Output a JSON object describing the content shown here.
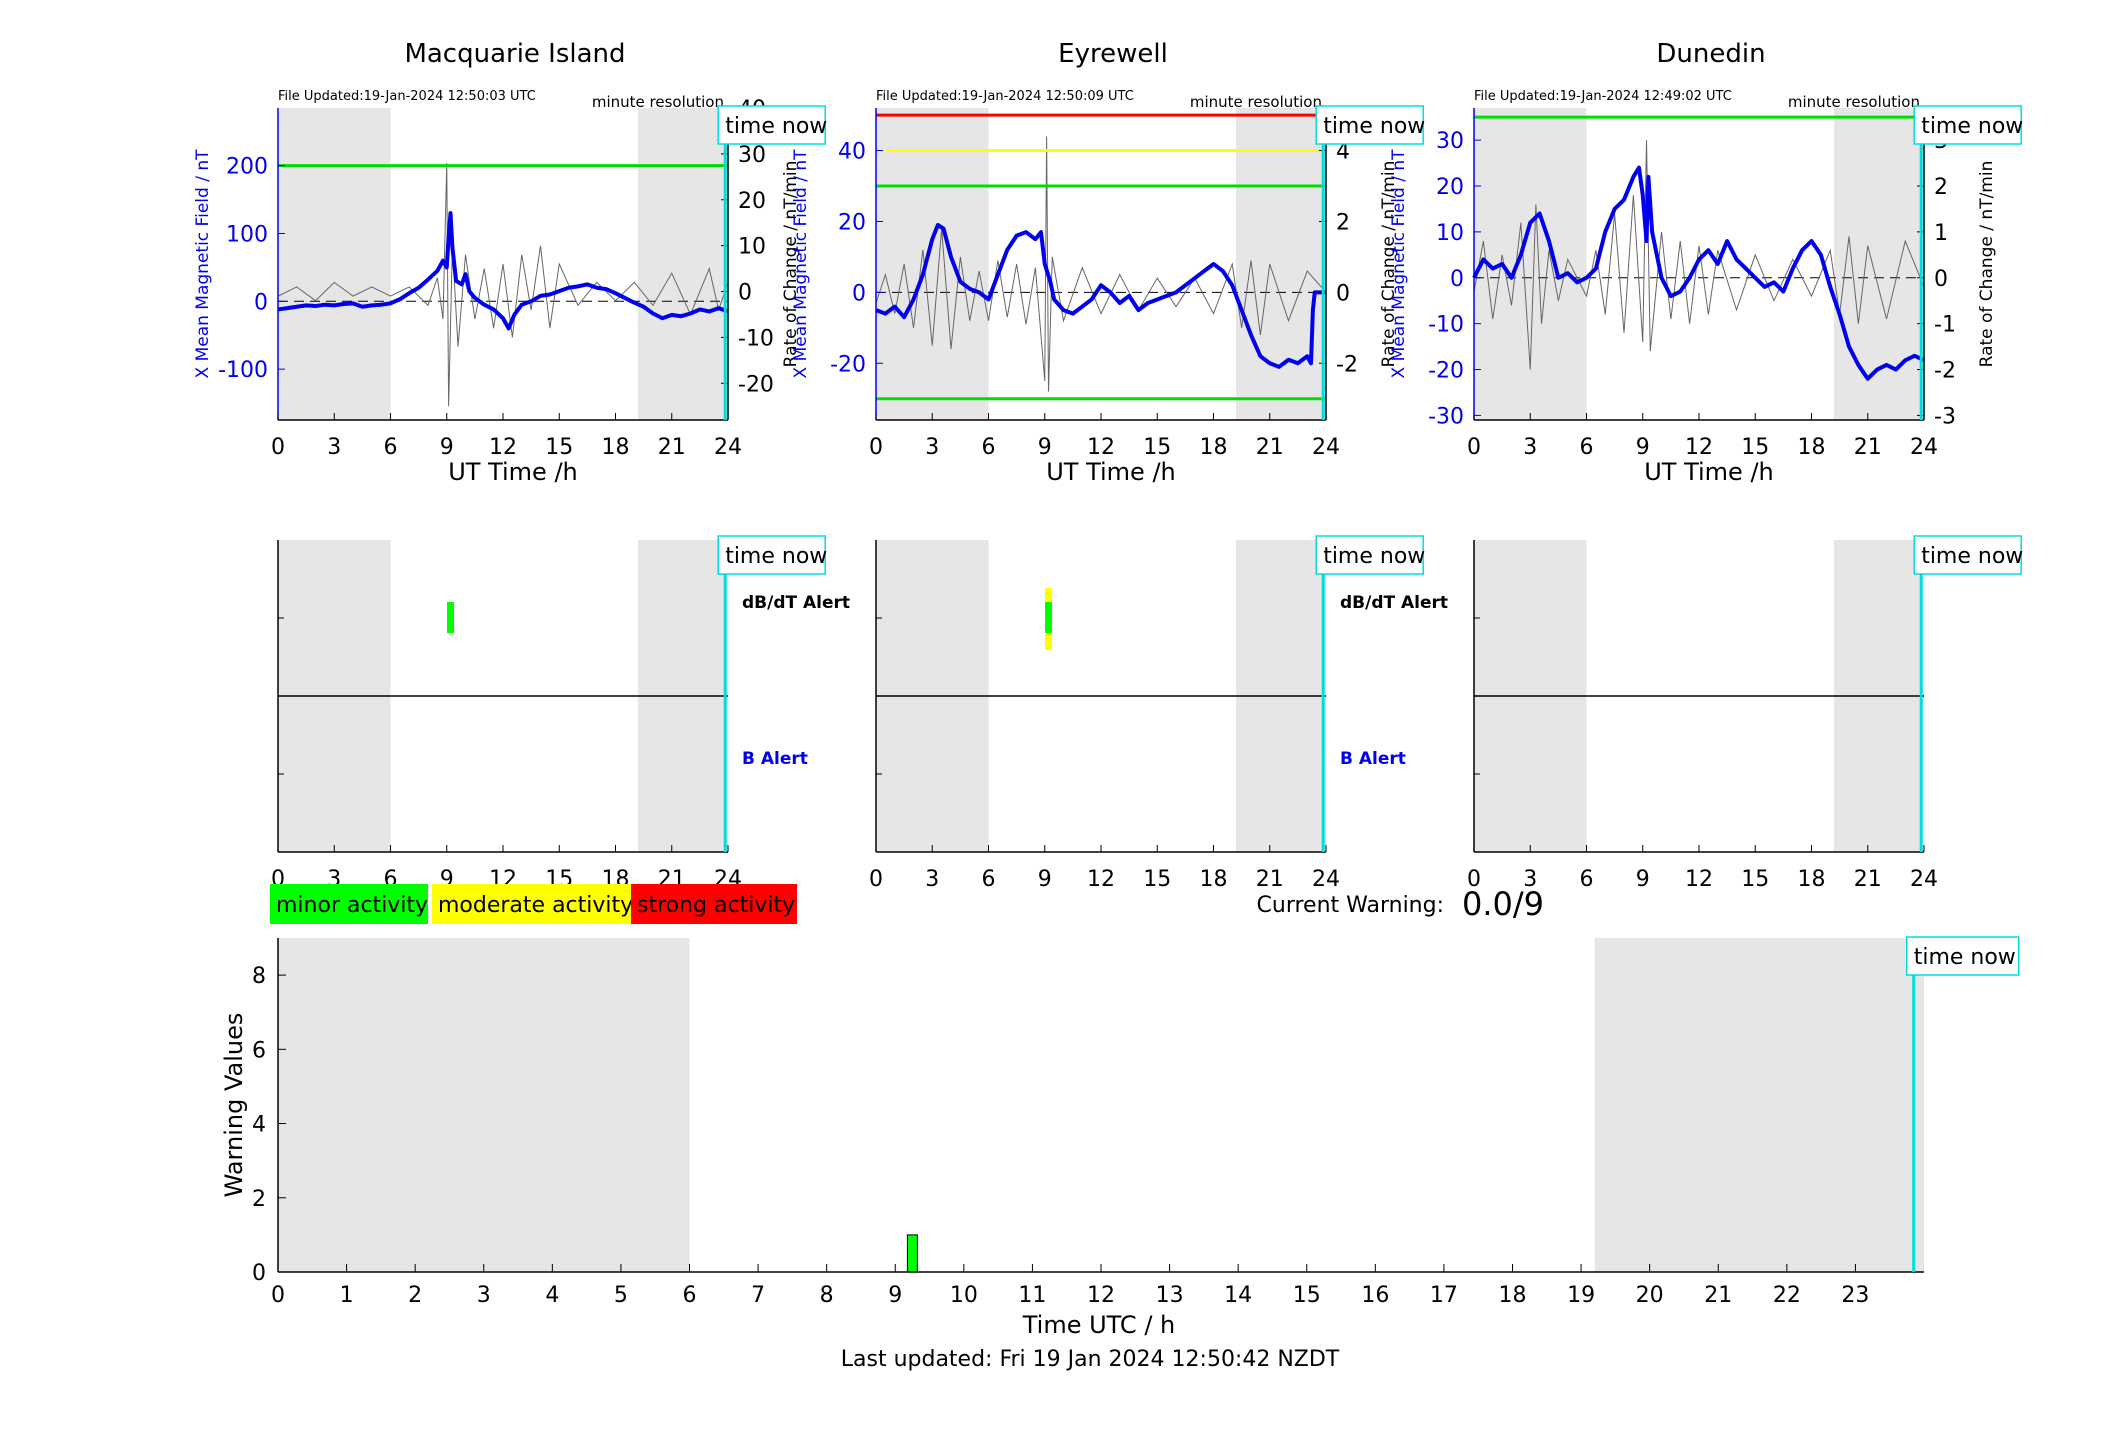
{
  "stations": [
    {
      "name": "Macquarie Island",
      "file_updated": "File Updated:19-Jan-2024 12:50:03 UTC",
      "resolution": "minute resolution",
      "left_ylabel": "X Mean Magnetic Field / nT",
      "right_ylabel": "Rate of Change / nT/min",
      "xlabel": "UT Time /h",
      "left_yticks": [
        -100,
        0,
        100,
        200
      ],
      "left_ylim": [
        -175,
        285
      ],
      "right_yticks": [
        -20,
        -10,
        0,
        10,
        20,
        30,
        40
      ],
      "right_ylim": [
        -28,
        40
      ],
      "threshold_lines": [
        {
          "y": 200,
          "color": "#00dd00"
        }
      ],
      "field_series": [
        [
          0,
          -12
        ],
        [
          0.5,
          -10
        ],
        [
          1,
          -8
        ],
        [
          1.5,
          -6
        ],
        [
          2,
          -7
        ],
        [
          2.5,
          -5
        ],
        [
          3,
          -6
        ],
        [
          3.5,
          -4
        ],
        [
          4,
          -3
        ],
        [
          4.5,
          -8
        ],
        [
          5,
          -6
        ],
        [
          5.5,
          -5
        ],
        [
          6,
          -3
        ],
        [
          6.5,
          3
        ],
        [
          7,
          12
        ],
        [
          7.5,
          20
        ],
        [
          8,
          32
        ],
        [
          8.5,
          45
        ],
        [
          8.8,
          60
        ],
        [
          9,
          50
        ],
        [
          9.1,
          95
        ],
        [
          9.2,
          130
        ],
        [
          9.3,
          80
        ],
        [
          9.5,
          30
        ],
        [
          9.8,
          25
        ],
        [
          10,
          40
        ],
        [
          10.2,
          15
        ],
        [
          10.5,
          5
        ],
        [
          11,
          -5
        ],
        [
          11.5,
          -12
        ],
        [
          12,
          -25
        ],
        [
          12.3,
          -40
        ],
        [
          12.6,
          -20
        ],
        [
          13,
          -5
        ],
        [
          13.5,
          0
        ],
        [
          14,
          8
        ],
        [
          14.5,
          10
        ],
        [
          15,
          15
        ],
        [
          15.5,
          20
        ],
        [
          16,
          22
        ],
        [
          16.5,
          25
        ],
        [
          17,
          20
        ],
        [
          17.5,
          18
        ],
        [
          18,
          12
        ],
        [
          18.5,
          5
        ],
        [
          19,
          -2
        ],
        [
          19.5,
          -8
        ],
        [
          20,
          -18
        ],
        [
          20.5,
          -25
        ],
        [
          21,
          -20
        ],
        [
          21.5,
          -22
        ],
        [
          22,
          -18
        ],
        [
          22.5,
          -12
        ],
        [
          23,
          -15
        ],
        [
          23.5,
          -10
        ],
        [
          24,
          -15
        ]
      ],
      "dbdt_series": [
        [
          0,
          -1
        ],
        [
          1,
          1
        ],
        [
          2,
          -2
        ],
        [
          3,
          2
        ],
        [
          4,
          -1
        ],
        [
          5,
          1
        ],
        [
          6,
          -1
        ],
        [
          7,
          1
        ],
        [
          8,
          -3
        ],
        [
          8.5,
          3
        ],
        [
          8.8,
          -6
        ],
        [
          9,
          28
        ],
        [
          9.1,
          -25
        ],
        [
          9.3,
          10
        ],
        [
          9.6,
          -12
        ],
        [
          10,
          8
        ],
        [
          10.5,
          -6
        ],
        [
          11,
          5
        ],
        [
          11.5,
          -8
        ],
        [
          12,
          6
        ],
        [
          12.5,
          -10
        ],
        [
          13,
          8
        ],
        [
          13.5,
          -4
        ],
        [
          14,
          10
        ],
        [
          14.5,
          -8
        ],
        [
          15,
          6
        ],
        [
          16,
          -3
        ],
        [
          17,
          2
        ],
        [
          18,
          -2
        ],
        [
          19,
          2
        ],
        [
          20,
          -3
        ],
        [
          21,
          4
        ],
        [
          22,
          -5
        ],
        [
          23,
          5
        ],
        [
          23.5,
          -4
        ],
        [
          24,
          2
        ]
      ],
      "time_now_label": "time now",
      "alerts": {
        "dbdt_label": "dB/dT Alert",
        "b_label": "B Alert"
      },
      "dbdt_alert_marks": [
        {
          "x": 9.2,
          "minor": true,
          "moderate": false
        }
      ]
    },
    {
      "name": "Eyrewell",
      "file_updated": "File Updated:19-Jan-2024 12:50:09 UTC",
      "resolution": "minute resolution",
      "left_ylabel": "X Mean Magnetic Field / nT",
      "right_ylabel": "Rate of Change / nT/min",
      "xlabel": "UT Time /h",
      "left_yticks": [
        -20,
        0,
        20,
        40
      ],
      "left_ylim": [
        -36,
        52
      ],
      "right_yticks": [
        -2,
        0,
        2,
        4
      ],
      "right_ylim": [
        -3.6,
        5.2
      ],
      "threshold_lines": [
        {
          "y": 50,
          "color": "#ff0000"
        },
        {
          "y": 40,
          "color": "#ffff00"
        },
        {
          "y": 30,
          "color": "#00dd00"
        },
        {
          "y": -30,
          "color": "#00dd00"
        }
      ],
      "field_series": [
        [
          0,
          -5
        ],
        [
          0.5,
          -6
        ],
        [
          1,
          -4
        ],
        [
          1.5,
          -7
        ],
        [
          2,
          -2
        ],
        [
          2.5,
          5
        ],
        [
          3,
          15
        ],
        [
          3.3,
          19
        ],
        [
          3.6,
          18
        ],
        [
          4,
          10
        ],
        [
          4.5,
          3
        ],
        [
          5,
          1
        ],
        [
          5.5,
          0
        ],
        [
          6,
          -2
        ],
        [
          6.5,
          5
        ],
        [
          7,
          12
        ],
        [
          7.5,
          16
        ],
        [
          8,
          17
        ],
        [
          8.5,
          15
        ],
        [
          8.8,
          17
        ],
        [
          9,
          8
        ],
        [
          9.3,
          3
        ],
        [
          9.5,
          -2
        ],
        [
          10,
          -5
        ],
        [
          10.5,
          -6
        ],
        [
          11,
          -4
        ],
        [
          11.5,
          -2
        ],
        [
          12,
          2
        ],
        [
          12.5,
          0
        ],
        [
          13,
          -3
        ],
        [
          13.5,
          -1
        ],
        [
          14,
          -5
        ],
        [
          14.5,
          -3
        ],
        [
          15,
          -2
        ],
        [
          15.5,
          -1
        ],
        [
          16,
          0
        ],
        [
          16.5,
          2
        ],
        [
          17,
          4
        ],
        [
          17.5,
          6
        ],
        [
          18,
          8
        ],
        [
          18.5,
          6
        ],
        [
          19,
          2
        ],
        [
          19.5,
          -5
        ],
        [
          20,
          -12
        ],
        [
          20.5,
          -18
        ],
        [
          21,
          -20
        ],
        [
          21.5,
          -21
        ],
        [
          22,
          -19
        ],
        [
          22.5,
          -20
        ],
        [
          23,
          -18
        ],
        [
          23.2,
          -20
        ],
        [
          23.3,
          -5
        ],
        [
          23.4,
          0
        ],
        [
          24,
          0
        ]
      ],
      "dbdt_series": [
        [
          0,
          -0.3
        ],
        [
          0.5,
          0.5
        ],
        [
          1,
          -0.6
        ],
        [
          1.5,
          0.8
        ],
        [
          2,
          -1
        ],
        [
          2.5,
          1.2
        ],
        [
          3,
          -1.5
        ],
        [
          3.5,
          1.8
        ],
        [
          4,
          -1.6
        ],
        [
          4.5,
          1
        ],
        [
          5,
          -0.8
        ],
        [
          5.5,
          0.6
        ],
        [
          6,
          -0.8
        ],
        [
          6.5,
          0.9
        ],
        [
          7,
          -0.7
        ],
        [
          7.5,
          0.8
        ],
        [
          8,
          -0.9
        ],
        [
          8.5,
          0.7
        ],
        [
          9,
          -2.5
        ],
        [
          9.1,
          4.4
        ],
        [
          9.2,
          -2.8
        ],
        [
          9.4,
          1
        ],
        [
          10,
          -0.8
        ],
        [
          11,
          0.7
        ],
        [
          12,
          -0.6
        ],
        [
          13,
          0.5
        ],
        [
          14,
          -0.5
        ],
        [
          15,
          0.4
        ],
        [
          16,
          -0.4
        ],
        [
          17,
          0.4
        ],
        [
          18,
          -0.6
        ],
        [
          19,
          0.8
        ],
        [
          19.5,
          -1
        ],
        [
          20,
          0.9
        ],
        [
          20.5,
          -1.2
        ],
        [
          21,
          0.8
        ],
        [
          22,
          -0.8
        ],
        [
          23,
          0.6
        ],
        [
          24,
          0
        ]
      ],
      "time_now_label": "time now",
      "alerts": {
        "dbdt_label": "dB/dT Alert",
        "b_label": "B Alert"
      },
      "dbdt_alert_marks": [
        {
          "x": 9.2,
          "minor": true,
          "moderate": true
        }
      ]
    },
    {
      "name": "Dunedin",
      "file_updated": "File Updated:19-Jan-2024 12:49:02 UTC",
      "resolution": "minute resolution",
      "left_ylabel": "X Mean Magnetic Field / nT",
      "right_ylabel": "Rate of Change / nT/min",
      "xlabel": "UT Time /h",
      "left_yticks": [
        -30,
        -20,
        -10,
        0,
        10,
        20,
        30
      ],
      "left_ylim": [
        -31,
        37
      ],
      "right_yticks": [
        -3,
        -2,
        -1,
        0,
        1,
        2,
        3
      ],
      "right_ylim": [
        -3.1,
        3.7
      ],
      "threshold_lines": [
        {
          "y": 35,
          "color": "#00dd00"
        }
      ],
      "field_series": [
        [
          0,
          0
        ],
        [
          0.5,
          4
        ],
        [
          1,
          2
        ],
        [
          1.5,
          3
        ],
        [
          2,
          0
        ],
        [
          2.5,
          5
        ],
        [
          3,
          12
        ],
        [
          3.5,
          14
        ],
        [
          4,
          8
        ],
        [
          4.5,
          0
        ],
        [
          5,
          1
        ],
        [
          5.5,
          -1
        ],
        [
          6,
          0
        ],
        [
          6.5,
          2
        ],
        [
          7,
          10
        ],
        [
          7.5,
          15
        ],
        [
          8,
          17
        ],
        [
          8.5,
          22
        ],
        [
          8.8,
          24
        ],
        [
          9,
          18
        ],
        [
          9.2,
          8
        ],
        [
          9.3,
          22
        ],
        [
          9.5,
          10
        ],
        [
          10,
          0
        ],
        [
          10.5,
          -4
        ],
        [
          11,
          -3
        ],
        [
          11.5,
          0
        ],
        [
          12,
          4
        ],
        [
          12.5,
          6
        ],
        [
          13,
          3
        ],
        [
          13.5,
          8
        ],
        [
          14,
          4
        ],
        [
          14.5,
          2
        ],
        [
          15,
          0
        ],
        [
          15.5,
          -2
        ],
        [
          16,
          -1
        ],
        [
          16.5,
          -3
        ],
        [
          17,
          2
        ],
        [
          17.5,
          6
        ],
        [
          18,
          8
        ],
        [
          18.5,
          5
        ],
        [
          19,
          -2
        ],
        [
          19.5,
          -8
        ],
        [
          20,
          -15
        ],
        [
          20.5,
          -19
        ],
        [
          21,
          -22
        ],
        [
          21.5,
          -20
        ],
        [
          22,
          -19
        ],
        [
          22.5,
          -20
        ],
        [
          23,
          -18
        ],
        [
          23.5,
          -17
        ],
        [
          24,
          -18
        ]
      ],
      "dbdt_series": [
        [
          0,
          -0.3
        ],
        [
          0.5,
          0.8
        ],
        [
          1,
          -0.9
        ],
        [
          1.5,
          0.5
        ],
        [
          2,
          -0.6
        ],
        [
          2.5,
          1.2
        ],
        [
          3,
          -2
        ],
        [
          3.3,
          1.6
        ],
        [
          3.6,
          -1
        ],
        [
          4,
          0.6
        ],
        [
          4.5,
          -0.5
        ],
        [
          5,
          0.4
        ],
        [
          6,
          -0.4
        ],
        [
          6.5,
          0.6
        ],
        [
          7,
          -0.8
        ],
        [
          7.5,
          1.4
        ],
        [
          8,
          -1.2
        ],
        [
          8.5,
          1.8
        ],
        [
          9,
          -1.4
        ],
        [
          9.2,
          3
        ],
        [
          9.4,
          -1.6
        ],
        [
          10,
          1
        ],
        [
          10.5,
          -0.9
        ],
        [
          11,
          0.8
        ],
        [
          11.5,
          -1
        ],
        [
          12,
          0.7
        ],
        [
          12.5,
          -0.8
        ],
        [
          13,
          0.6
        ],
        [
          14,
          -0.7
        ],
        [
          15,
          0.5
        ],
        [
          16,
          -0.5
        ],
        [
          17,
          0.4
        ],
        [
          18,
          -0.4
        ],
        [
          19,
          0.6
        ],
        [
          19.5,
          -0.8
        ],
        [
          20,
          0.9
        ],
        [
          20.5,
          -1
        ],
        [
          21,
          0.7
        ],
        [
          22,
          -0.9
        ],
        [
          23,
          0.8
        ],
        [
          24,
          -0.2
        ]
      ],
      "time_now_label": "time now",
      "alerts": {
        "dbdt_label": "",
        "b_label": ""
      },
      "dbdt_alert_marks": []
    }
  ],
  "top_xticks": [
    0,
    3,
    6,
    9,
    12,
    15,
    18,
    21,
    24
  ],
  "night_shading": [
    [
      0,
      6
    ],
    [
      19.2,
      24
    ]
  ],
  "time_now_hour": 23.85,
  "legend": {
    "minor": "minor activity",
    "moderate": "moderate activity",
    "strong": "strong activity"
  },
  "colors": {
    "minor": "#00ff00",
    "moderate": "#ffff00",
    "strong": "#ff0000",
    "field": "#0000ee",
    "time_now": "#00dddd",
    "night": "#e6e6e6"
  },
  "current_warning": {
    "label": "Current Warning:",
    "value": "0.0/9"
  },
  "warning_chart": {
    "type": "bar",
    "ylabel": "Warning Values",
    "xlabel": "Time UTC / h",
    "yticks": [
      0,
      2,
      4,
      6,
      8
    ],
    "ylim": [
      0,
      9
    ],
    "xlim": [
      0,
      24
    ],
    "xticks": [
      0,
      1,
      2,
      3,
      4,
      5,
      6,
      7,
      8,
      9,
      10,
      11,
      12,
      13,
      14,
      15,
      16,
      17,
      18,
      19,
      20,
      21,
      22,
      23
    ],
    "bars": [
      {
        "x": 9.25,
        "value": 1
      }
    ],
    "time_now_label": "time now"
  },
  "last_updated": "Last updated: Fri 19 Jan 2024 12:50:42 NZDT"
}
